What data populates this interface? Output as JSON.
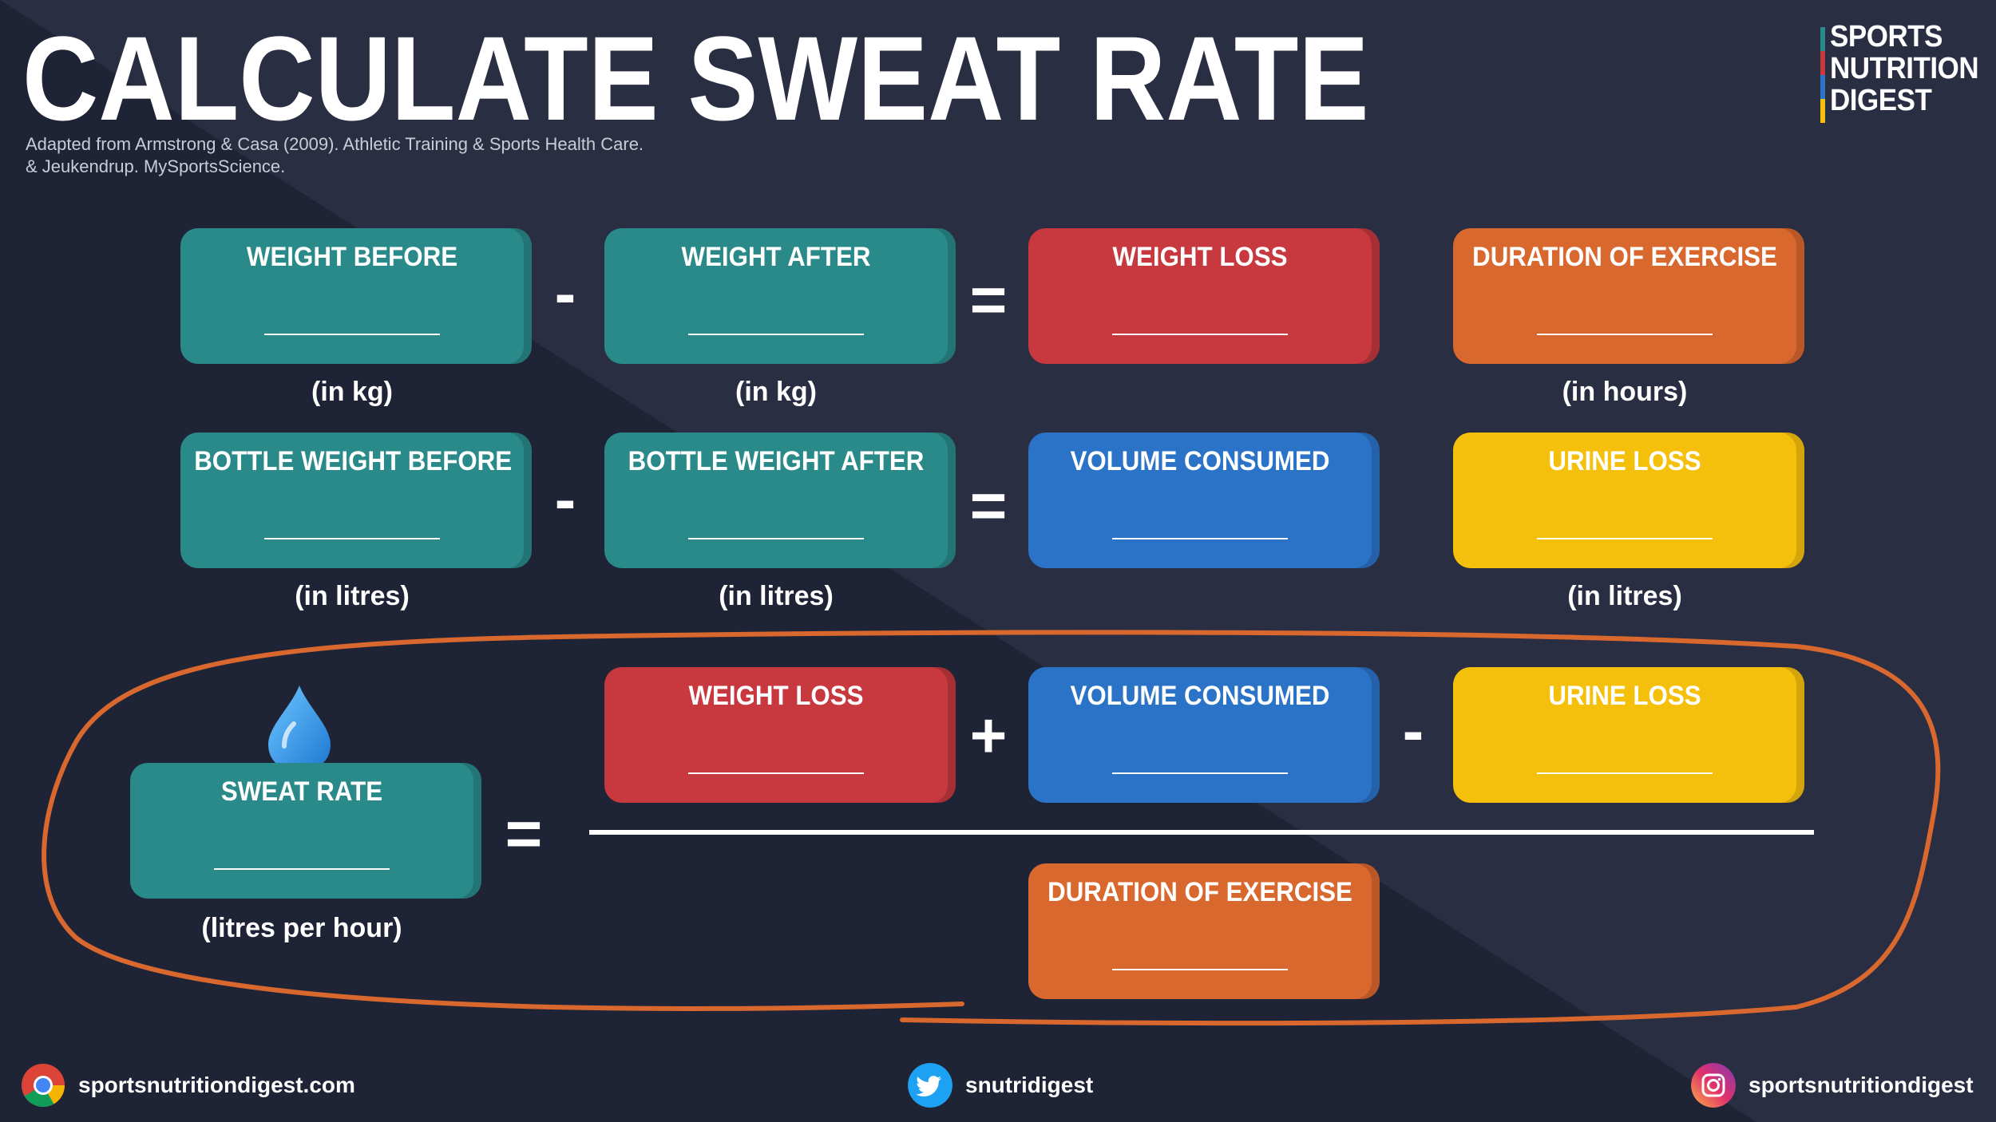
{
  "title": "CALCULATE SWEAT RATE",
  "source": {
    "line1": "Adapted from Armstrong & Casa (2009). Athletic Training & Sports Health Care.",
    "line2": "& Jeukendrup. MySportsScience."
  },
  "logo": {
    "line1": "SPORTS",
    "line2": "NUTRITION",
    "line3": "DIGEST"
  },
  "row1": {
    "box1": "WEIGHT BEFORE",
    "op1": "-",
    "box2": "WEIGHT AFTER",
    "op2": "=",
    "box3": "WEIGHT LOSS",
    "box4": "DURATION OF EXERCISE",
    "unit1": "(in kg)",
    "unit2": "(in kg)",
    "unit4": "(in hours)"
  },
  "row2": {
    "box1": "BOTTLE WEIGHT BEFORE",
    "op1": "-",
    "box2": "BOTTLE WEIGHT AFTER",
    "op2": "=",
    "box3": "VOLUME CONSUMED",
    "box4": "URINE LOSS",
    "unit1": "(in litres)",
    "unit2": "(in litres)",
    "unit4": "(in litres)"
  },
  "formula": {
    "result": "SWEAT RATE",
    "result_unit": "(litres per hour)",
    "equals": "=",
    "num1": "WEIGHT LOSS",
    "plus": "+",
    "num2": "VOLUME CONSUMED",
    "minus": "-",
    "num3": "URINE LOSS",
    "denominator": "DURATION OF EXERCISE"
  },
  "footer": {
    "website": "sportsnutritiondigest.com",
    "twitter": "snutridigest",
    "instagram": "sportsnutritiondigest"
  },
  "colors": {
    "background": "#1f2336",
    "teal": "#2a8a8a",
    "red": "#c7383f",
    "orange": "#d9682f",
    "blue": "#2a73c6",
    "yellow": "#f5c00c"
  }
}
